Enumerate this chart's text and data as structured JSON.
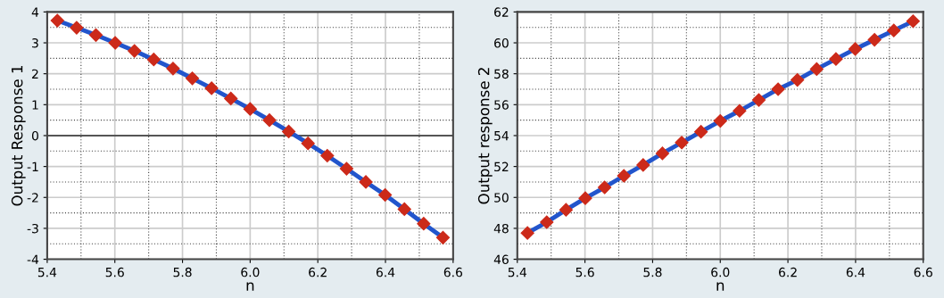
{
  "chart_data": [
    {
      "type": "line",
      "xlabel": "n",
      "ylabel": "Output Response 1",
      "x": [
        5.43,
        5.487,
        5.544,
        5.601,
        5.658,
        5.715,
        5.772,
        5.829,
        5.886,
        5.943,
        6.0,
        6.057,
        6.114,
        6.171,
        6.228,
        6.285,
        6.342,
        6.399,
        6.456,
        6.513,
        6.57
      ],
      "series": [
        {
          "color": "#2255cc",
          "values": [
            3.72,
            3.49,
            3.25,
            3.0,
            2.74,
            2.46,
            2.17,
            1.85,
            1.53,
            1.2,
            0.86,
            0.5,
            0.13,
            -0.25,
            -0.65,
            -1.07,
            -1.5,
            -1.92,
            -2.38,
            -2.85,
            -3.3
          ]
        }
      ],
      "xlim": [
        5.4,
        6.6
      ],
      "xticks": [
        5.4,
        5.6,
        5.8,
        {
          "value": 6.0,
          "label": "6.0"
        },
        6.2,
        6.4,
        6.6
      ],
      "ylim": [
        -4,
        4
      ],
      "yticks": [
        {
          "value": -4,
          "label": "-4"
        },
        {
          "value": -3,
          "label": "-3"
        },
        {
          "value": -2,
          "label": "-2"
        },
        {
          "value": -1,
          "label": "-1"
        },
        0,
        1,
        2,
        3,
        4
      ],
      "ref_lines": [
        {
          "axis": "y",
          "value": 0,
          "color": "#555555"
        }
      ],
      "grid": true,
      "marker": "diamond",
      "line_style": "solid"
    },
    {
      "type": "line",
      "xlabel": "n",
      "ylabel": "Output response 2",
      "x": [
        5.43,
        5.487,
        5.544,
        5.601,
        5.658,
        5.715,
        5.772,
        5.829,
        5.886,
        5.943,
        6.0,
        6.057,
        6.114,
        6.171,
        6.228,
        6.285,
        6.342,
        6.399,
        6.456,
        6.513,
        6.57
      ],
      "series": [
        {
          "color": "#2255cc",
          "values": [
            47.7,
            48.4,
            49.2,
            49.95,
            50.65,
            51.4,
            52.1,
            52.85,
            53.55,
            54.25,
            54.95,
            55.6,
            56.3,
            57.0,
            57.6,
            58.3,
            58.95,
            59.6,
            60.2,
            60.8,
            61.4
          ]
        }
      ],
      "xlim": [
        5.4,
        6.6
      ],
      "xticks": [
        5.4,
        5.6,
        5.8,
        {
          "value": 6.0,
          "label": "6.0"
        },
        6.2,
        6.4,
        6.6
      ],
      "ylim": [
        46,
        62
      ],
      "yticks": [
        46,
        48,
        50,
        52,
        54,
        56,
        58,
        60,
        62
      ],
      "grid": true,
      "marker": "diamond",
      "line_style": "solid"
    }
  ]
}
